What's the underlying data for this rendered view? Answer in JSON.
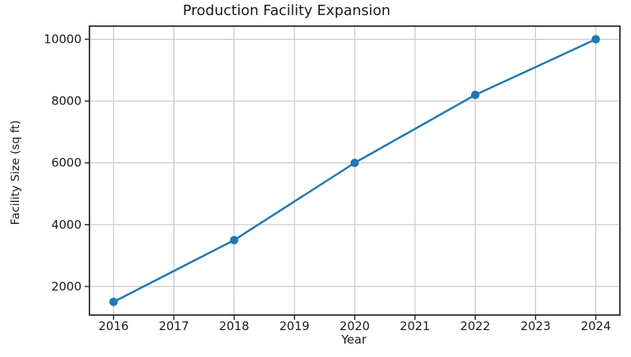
{
  "figure": {
    "background": "#ffffff"
  },
  "chart_data": {
    "type": "line",
    "title": "Production Facility Expansion",
    "xlabel": "Year",
    "ylabel": "Facility Size (sq ft)",
    "x": [
      2016,
      2018,
      2020,
      2022,
      2024
    ],
    "values": [
      1500,
      3500,
      6000,
      8200,
      10000
    ],
    "x_ticks": [
      2016,
      2017,
      2018,
      2019,
      2020,
      2021,
      2022,
      2023,
      2024
    ],
    "y_ticks": [
      2000,
      4000,
      6000,
      8000,
      10000
    ],
    "xlim": [
      2015.6,
      2024.4
    ],
    "ylim": [
      1075,
      10425
    ],
    "grid": true,
    "legend_position": "none",
    "line_color": "#1f77b4",
    "marker": "circle",
    "marker_size": 10.6,
    "grid_color": "#c8c8c8",
    "spine_color": "#2b2b2b",
    "tick_color": "#2b2b2b",
    "text_color": "#1a1a1a"
  }
}
